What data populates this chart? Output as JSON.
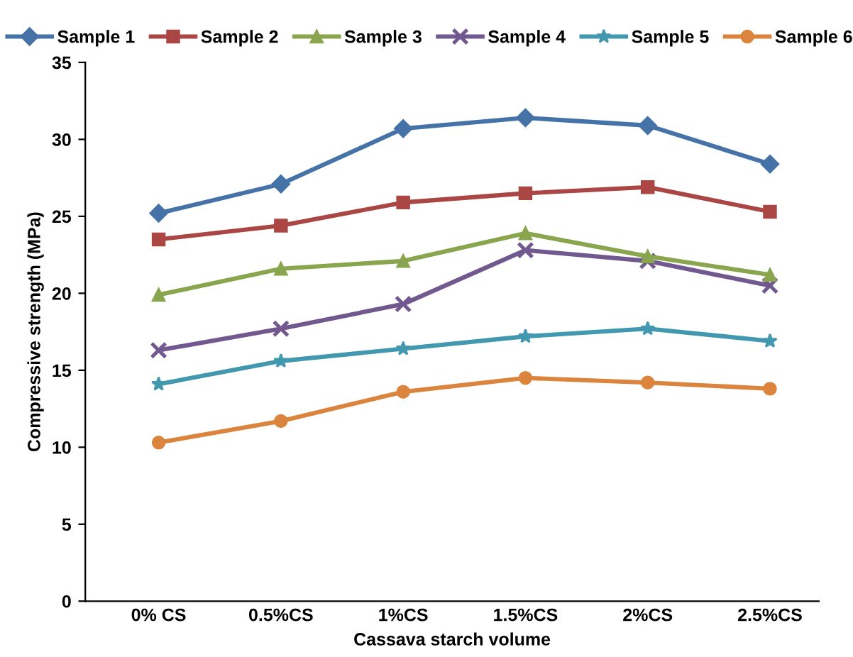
{
  "chart_data": {
    "type": "line",
    "xlabel": "Cassava starch volume",
    "ylabel": "Compressive strength (MPa)",
    "categories": [
      "0% CS",
      "0.5%CS",
      "1%CS",
      "1.5%CS",
      "2%CS",
      "2.5%CS"
    ],
    "series": [
      {
        "name": "Sample 1",
        "color": "#4572a7",
        "marker": "diamond",
        "values": [
          25.2,
          27.1,
          30.7,
          31.4,
          30.9,
          28.4
        ]
      },
      {
        "name": "Sample 2",
        "color": "#aa4643",
        "marker": "square",
        "values": [
          23.5,
          24.4,
          25.9,
          26.5,
          26.9,
          25.3
        ]
      },
      {
        "name": "Sample 3",
        "color": "#89a54e",
        "marker": "triangle",
        "values": [
          19.9,
          21.6,
          22.1,
          23.9,
          22.4,
          21.2
        ]
      },
      {
        "name": "Sample 4",
        "color": "#71588f",
        "marker": "cross",
        "values": [
          16.3,
          17.7,
          19.3,
          22.8,
          22.1,
          20.5
        ]
      },
      {
        "name": "Sample 5",
        "color": "#4198af",
        "marker": "star",
        "values": [
          14.1,
          15.6,
          16.4,
          17.2,
          17.7,
          16.9
        ]
      },
      {
        "name": "Sample 6",
        "color": "#db843d",
        "marker": "circle",
        "values": [
          10.3,
          11.7,
          13.6,
          14.5,
          14.2,
          13.8
        ]
      }
    ],
    "ylim": [
      0,
      35
    ],
    "yticks": [
      0,
      5,
      10,
      15,
      20,
      25,
      30,
      35
    ],
    "grid": false,
    "legend": "top",
    "line_style": "solid"
  }
}
